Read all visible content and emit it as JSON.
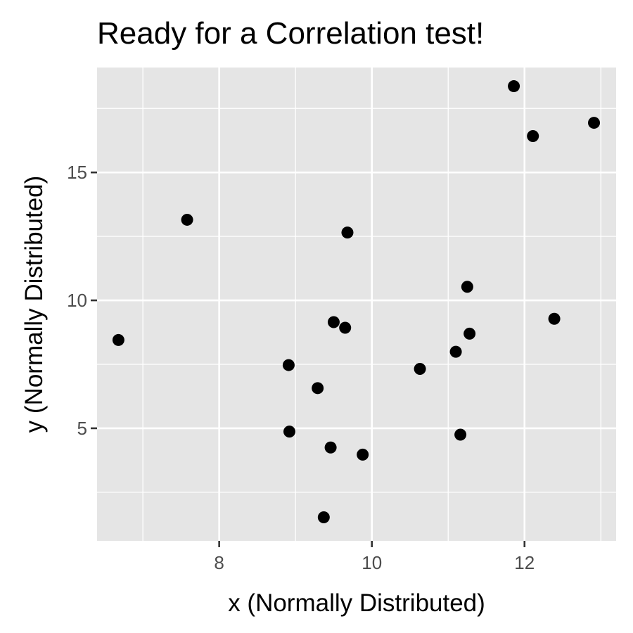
{
  "chart_data": {
    "type": "scatter",
    "title": "Ready for a Correlation test!",
    "xlabel": "x (Normally Distributed)",
    "ylabel": "y (Normally Distributed)",
    "xlim": [
      6.4,
      13.2
    ],
    "ylim": [
      0.6,
      19.1
    ],
    "x_ticks": [
      8,
      10,
      12
    ],
    "y_ticks": [
      5,
      10,
      15
    ],
    "x_minor_ticks": [
      7,
      9,
      11,
      13
    ],
    "y_minor_ticks": [
      2.5,
      7.5,
      12.5,
      17.5
    ],
    "x_tick_labels": [
      "8",
      "10",
      "12"
    ],
    "y_tick_labels": [
      "5",
      "10",
      "15"
    ],
    "grid": true,
    "legend": "none",
    "colors": {
      "panel": "#e5e5e5",
      "grid": "#ffffff",
      "point": "#000000",
      "tick_label": "#4d4d4d"
    },
    "points": [
      {
        "x": 6.68,
        "y": 8.45
      },
      {
        "x": 7.58,
        "y": 13.15
      },
      {
        "x": 8.91,
        "y": 7.47
      },
      {
        "x": 8.92,
        "y": 4.87
      },
      {
        "x": 9.29,
        "y": 6.57
      },
      {
        "x": 9.37,
        "y": 1.52
      },
      {
        "x": 9.46,
        "y": 4.25
      },
      {
        "x": 9.5,
        "y": 9.15
      },
      {
        "x": 9.65,
        "y": 8.93
      },
      {
        "x": 9.68,
        "y": 12.65
      },
      {
        "x": 9.88,
        "y": 3.97
      },
      {
        "x": 10.63,
        "y": 7.32
      },
      {
        "x": 11.1,
        "y": 7.99
      },
      {
        "x": 11.16,
        "y": 4.75
      },
      {
        "x": 11.25,
        "y": 10.53
      },
      {
        "x": 11.28,
        "y": 8.7
      },
      {
        "x": 11.86,
        "y": 18.37
      },
      {
        "x": 12.11,
        "y": 16.42
      },
      {
        "x": 12.39,
        "y": 9.28
      },
      {
        "x": 12.91,
        "y": 16.94
      }
    ]
  }
}
